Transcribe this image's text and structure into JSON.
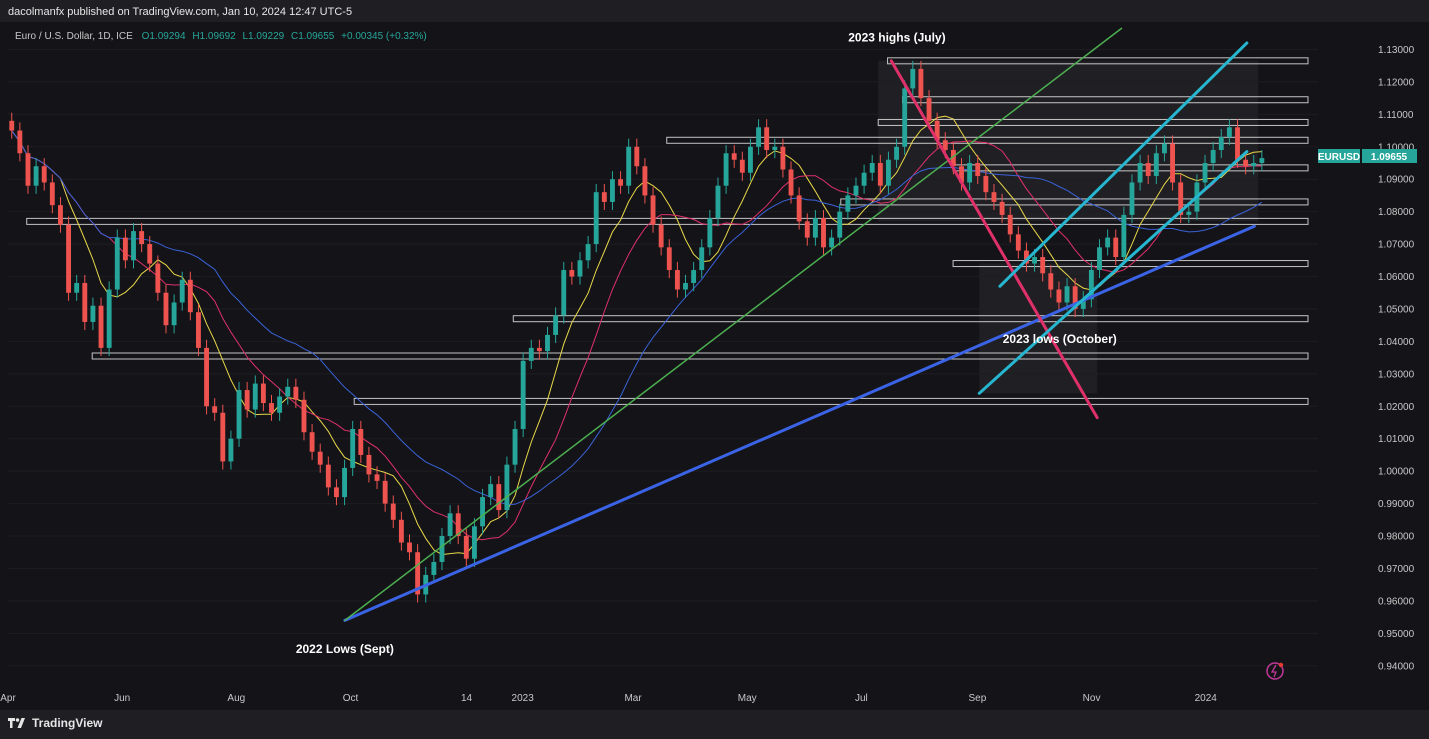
{
  "header": {
    "publisher": "dacolmanfx published on TradingView.com, Jan 10, 2024 12:47 UTC-5"
  },
  "footer": {
    "brand": "TradingView",
    "brand_icon": "tradingview-logo-icon"
  },
  "chart_data": {
    "type": "candlestick",
    "symbol_line": {
      "name": "Euro / U.S. Dollar, 1D, ICE",
      "open": "O1.09294",
      "high": "H1.09692",
      "low": "L1.09229",
      "close": "C1.09655",
      "change": "+0.00345 (+0.32%)"
    },
    "last_price": {
      "symbol": "EURUSD",
      "value": "1.09655",
      "numeric": 1.09655
    },
    "ylim": [
      0.935,
      1.136
    ],
    "y_ticks": [
      "0.94000",
      "0.95000",
      "0.96000",
      "0.97000",
      "0.98000",
      "0.99000",
      "1.00000",
      "1.01000",
      "1.02000",
      "1.03000",
      "1.04000",
      "1.05000",
      "1.06000",
      "1.07000",
      "1.08000",
      "1.09000",
      "1.10000",
      "1.11000",
      "1.12000",
      "1.13000"
    ],
    "x_ticks": [
      "Apr",
      "Jun",
      "Aug",
      "Oct",
      "14",
      "2023",
      "Mar",
      "May",
      "Jul",
      "Sep",
      "Nov",
      "2024"
    ],
    "x_tick_days": [
      0,
      61,
      122,
      183,
      245,
      275,
      334,
      395,
      456,
      518,
      579,
      640
    ],
    "x_range_days": [
      0,
      700
    ],
    "annotations": [
      {
        "text": "2023 highs (July)",
        "day": 475,
        "price": 1.1325
      },
      {
        "text": "2022 Lows (Sept)",
        "day": 180,
        "price": 0.944
      },
      {
        "text": "2023 lows (October)",
        "day": 562,
        "price": 1.0395
      }
    ],
    "closes": [
      1.105,
      1.098,
      1.088,
      1.094,
      1.089,
      1.082,
      1.076,
      1.055,
      1.058,
      1.046,
      1.051,
      1.038,
      1.056,
      1.072,
      1.065,
      1.074,
      1.07,
      1.064,
      1.055,
      1.045,
      1.052,
      1.059,
      1.049,
      1.038,
      1.02,
      1.018,
      1.003,
      1.01,
      1.025,
      1.019,
      1.027,
      1.021,
      1.018,
      1.023,
      1.026,
      1.022,
      1.012,
      1.006,
      1.002,
      0.995,
      0.992,
      1.001,
      1.013,
      1.005,
      0.999,
      0.997,
      0.99,
      0.985,
      0.978,
      0.975,
      0.962,
      0.968,
      0.972,
      0.98,
      0.987,
      0.98,
      0.973,
      0.983,
      0.992,
      0.996,
      0.988,
      1.002,
      1.013,
      1.034,
      1.038,
      1.037,
      1.042,
      1.048,
      1.062,
      1.06,
      1.065,
      1.07,
      1.086,
      1.083,
      1.09,
      1.088,
      1.1,
      1.094,
      1.085,
      1.076,
      1.069,
      1.062,
      1.056,
      1.058,
      1.062,
      1.069,
      1.078,
      1.088,
      1.098,
      1.096,
      1.092,
      1.1,
      1.106,
      1.099,
      1.1,
      1.093,
      1.085,
      1.077,
      1.072,
      1.078,
      1.069,
      1.072,
      1.08,
      1.085,
      1.088,
      1.092,
      1.095,
      1.088,
      1.096,
      1.1,
      1.118,
      1.124,
      1.115,
      1.108,
      1.102,
      1.099,
      1.094,
      1.089,
      1.095,
      1.091,
      1.086,
      1.083,
      1.079,
      1.073,
      1.068,
      1.064,
      1.066,
      1.061,
      1.056,
      1.052,
      1.057,
      1.05,
      1.053,
      1.062,
      1.069,
      1.072,
      1.066,
      1.079,
      1.089,
      1.095,
      1.091,
      1.098,
      1.101,
      1.089,
      1.079,
      1.08,
      1.089,
      1.095,
      1.099,
      1.103,
      1.106,
      1.096,
      1.094,
      1.095,
      1.0965
    ],
    "moving_averages": [
      {
        "name": "MA 50",
        "color": "#e8d749"
      },
      {
        "name": "MA 100",
        "color": "#e0306a"
      },
      {
        "name": "MA 200",
        "color": "#3a62d8"
      }
    ],
    "horizontal_levels": [
      1.1265,
      1.1145,
      1.1075,
      1.102,
      1.0935,
      1.083,
      1.077,
      1.064,
      1.047,
      1.0355,
      1.0215
    ],
    "trendlines": [
      {
        "name": "long-term support",
        "color": "#3b63e6",
        "from": [
          180,
          0.954
        ],
        "to": [
          666,
          1.0755
        ]
      },
      {
        "name": "long-term uptrend",
        "color": "#4caf50",
        "from": [
          180,
          0.954
        ],
        "to": [
          595,
          1.1365
        ]
      },
      {
        "name": "bearish channel",
        "color": "#e0306a",
        "from": [
          472,
          1.1265
        ],
        "to": [
          582,
          1.0165
        ]
      },
      {
        "name": "bullish channel upper",
        "color": "#26b6d0",
        "from": [
          530,
          1.057
        ],
        "to": [
          662,
          1.132
        ]
      },
      {
        "name": "bullish channel lower",
        "color": "#26b6d0",
        "from": [
          519,
          1.024
        ],
        "to": [
          662,
          1.0985
        ]
      }
    ]
  }
}
